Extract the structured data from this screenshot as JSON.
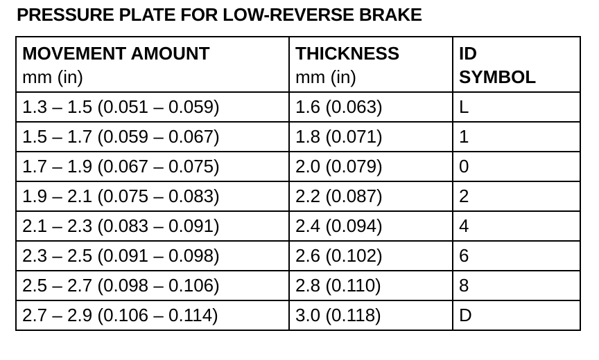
{
  "title": "PRESSURE PLATE FOR LOW-REVERSE BRAKE",
  "headers": [
    {
      "line1": "MOVEMENT AMOUNT",
      "line2": "mm (in)"
    },
    {
      "line1": "THICKNESS",
      "line2": "mm (in)"
    },
    {
      "line1": "ID",
      "line2": "SYMBOL"
    }
  ],
  "rows": [
    {
      "movement": "1.3 – 1.5 (0.051 – 0.059)",
      "thickness": "1.6 (0.063)",
      "symbol": "L"
    },
    {
      "movement": "1.5 – 1.7 (0.059 – 0.067)",
      "thickness": "1.8 (0.071)",
      "symbol": "1"
    },
    {
      "movement": "1.7 – 1.9 (0.067 – 0.075)",
      "thickness": "2.0 (0.079)",
      "symbol": "0"
    },
    {
      "movement": "1.9 – 2.1 (0.075 – 0.083)",
      "thickness": "2.2 (0.087)",
      "symbol": "2"
    },
    {
      "movement": "2.1 – 2.3 (0.083 – 0.091)",
      "thickness": "2.4 (0.094)",
      "symbol": "4"
    },
    {
      "movement": "2.3 – 2.5 (0.091 – 0.098)",
      "thickness": "2.6 (0.102)",
      "symbol": "6"
    },
    {
      "movement": "2.5 – 2.7 (0.098 – 0.106)",
      "thickness": "2.8 (0.110)",
      "symbol": "8"
    },
    {
      "movement": "2.7 – 2.9 (0.106 – 0.114)",
      "thickness": "3.0 (0.118)",
      "symbol": "D"
    }
  ]
}
